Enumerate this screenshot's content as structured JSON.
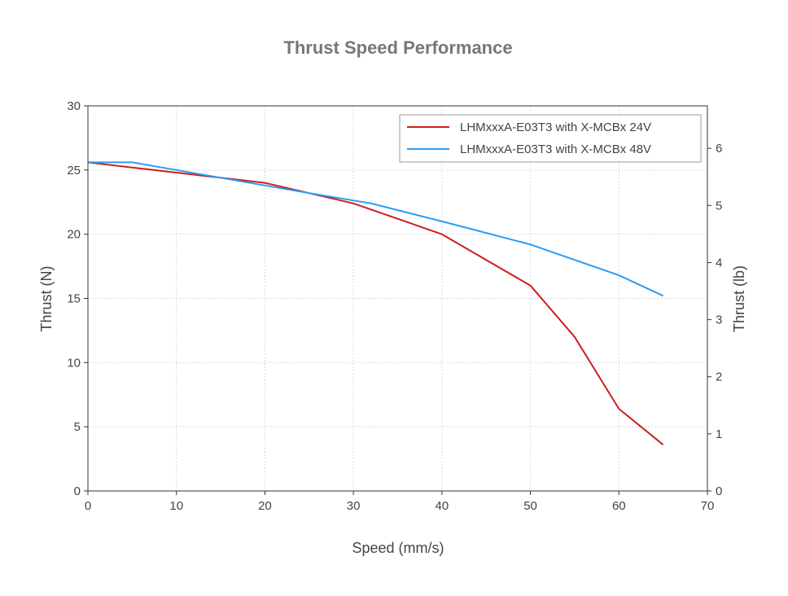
{
  "chart_data": {
    "type": "line",
    "title": "Thrust Speed Performance",
    "xlabel": "Speed (mm/s)",
    "ylabel": "Thrust (N)",
    "y2label": "Thrust (lb)",
    "xlim": [
      0,
      70
    ],
    "ylim": [
      0,
      30
    ],
    "y2lim": [
      0,
      6.744
    ],
    "x_ticks": [
      "0",
      "10",
      "20",
      "30",
      "40",
      "50",
      "60",
      "70"
    ],
    "y_ticks": [
      "0",
      "5",
      "10",
      "15",
      "20",
      "25",
      "30"
    ],
    "y2_ticks": [
      "0",
      "1",
      "2",
      "3",
      "4",
      "5",
      "6"
    ],
    "grid": true,
    "legend_position": "top-right",
    "series": [
      {
        "name": "LHMxxxA-E03T3 with X-MCBx 24V",
        "color": "#cc1f1f",
        "x": [
          0,
          5,
          10,
          15,
          20,
          25,
          30,
          35,
          40,
          45,
          50,
          55,
          60,
          65
        ],
        "values": [
          25.6,
          25.2,
          24.8,
          24.4,
          24.0,
          23.2,
          22.4,
          21.2,
          20.0,
          18.0,
          16.0,
          12.0,
          6.4,
          3.6
        ]
      },
      {
        "name": "LHMxxxA-E03T3 with X-MCBx 48V",
        "color": "#2b9bf4",
        "x": [
          0,
          5,
          10,
          15,
          20,
          25,
          32,
          40,
          50,
          60,
          65
        ],
        "values": [
          25.6,
          25.6,
          25.0,
          24.4,
          23.8,
          23.2,
          22.4,
          21.0,
          19.2,
          16.8,
          15.2
        ]
      }
    ]
  }
}
